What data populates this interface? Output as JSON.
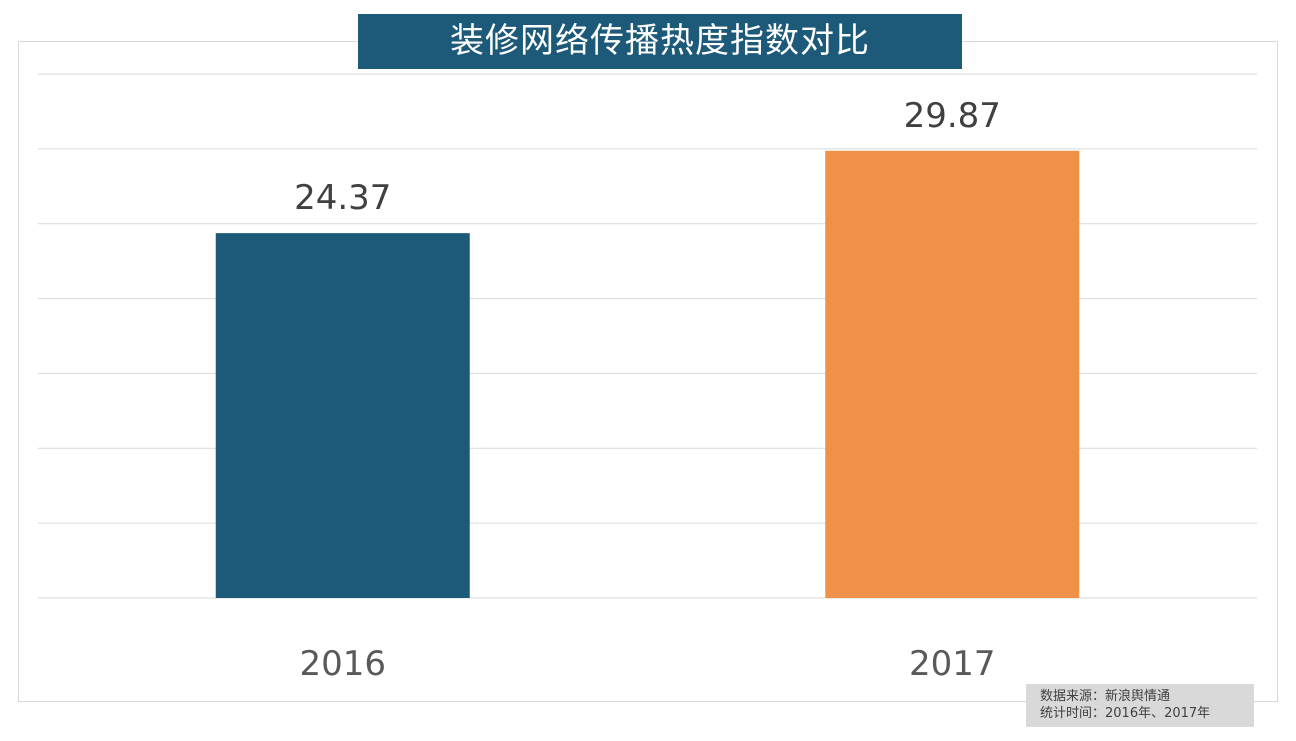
{
  "chart_data": {
    "type": "bar",
    "title": "装修网络传播热度指数对比",
    "categories": [
      "2016",
      "2017"
    ],
    "values": [
      24.37,
      29.87
    ],
    "value_labels": [
      "24.37",
      "29.87"
    ],
    "colors": [
      "#1d5a7a",
      "#f0914a"
    ],
    "ylim": [
      0,
      35
    ],
    "grid_step": 5,
    "grid": true,
    "xlabel": "",
    "ylabel": ""
  },
  "source": {
    "line1": "数据来源：新浪舆情通",
    "line2": "统计时间：2016年、2017年"
  }
}
